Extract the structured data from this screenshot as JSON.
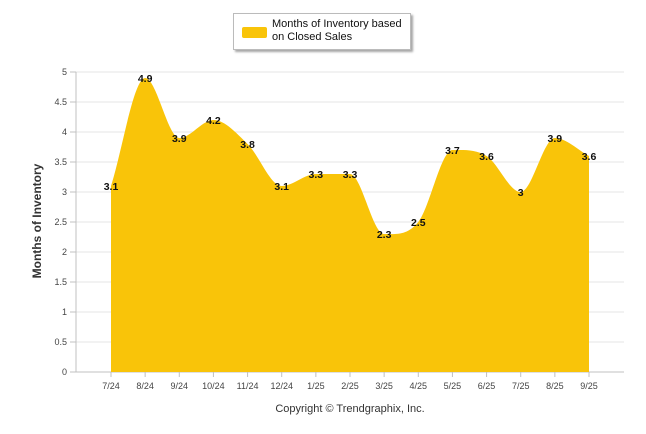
{
  "colors": {
    "series": "#F9C409",
    "grid": "#e6e6e6",
    "axis": "#c0c0c0"
  },
  "chart_data": {
    "type": "area",
    "title": "",
    "xlabel": "",
    "ylabel": "Months of Inventory",
    "ylim": [
      0,
      5
    ],
    "yticks": [
      "0",
      "0.5",
      "1",
      "1.5",
      "2",
      "2.5",
      "3",
      "3.5",
      "4",
      "4.5",
      "5"
    ],
    "grid": true,
    "legend_position": "top-center",
    "categories": [
      "7/24",
      "8/24",
      "9/24",
      "10/24",
      "11/24",
      "12/24",
      "1/25",
      "2/25",
      "3/25",
      "4/25",
      "5/25",
      "6/25",
      "7/25",
      "8/25",
      "9/25"
    ],
    "series": [
      {
        "name": "Months of Inventory based on Closed Sales",
        "values": [
          3.1,
          4.9,
          3.9,
          4.2,
          3.8,
          3.1,
          3.3,
          3.3,
          2.3,
          2.5,
          3.7,
          3.6,
          3,
          3.9,
          3.6
        ],
        "labels": [
          "3.1",
          "4.9",
          "3.9",
          "4.2",
          "3.8",
          "3.1",
          "3.3",
          "3.3",
          "2.3",
          "2.5",
          "3.7",
          "3.6",
          "3",
          "3.9",
          "3.6"
        ]
      }
    ]
  },
  "legend": {
    "label": "Months of Inventory based on Closed Sales"
  },
  "footer": {
    "copyright": "Copyright © Trendgraphix, Inc."
  }
}
